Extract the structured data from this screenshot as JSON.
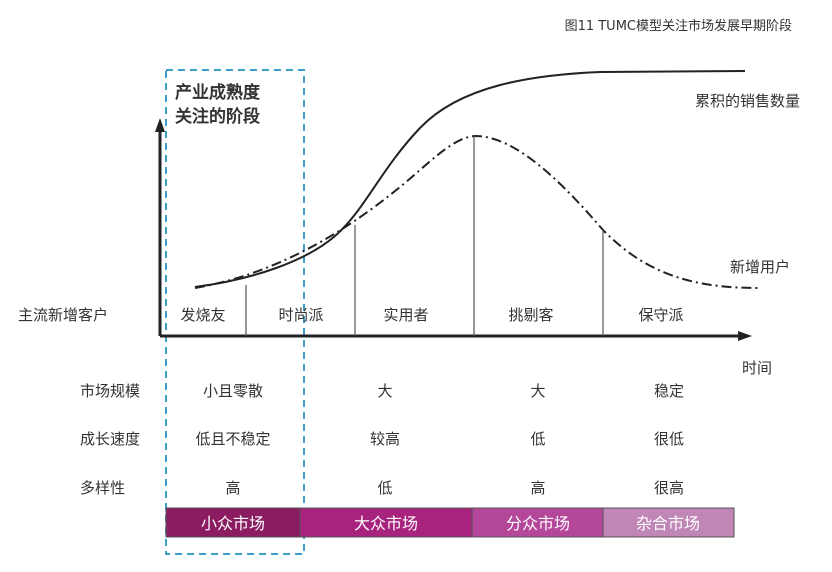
{
  "chart_data": {
    "type": "line",
    "title": "图11 TUMC模型关注市场发展早期阶段",
    "xlabel": "时间",
    "focus_label": [
      "产业成熟度",
      "关注的阶段"
    ],
    "series": [
      {
        "name": "累积的销售数量",
        "style": "solid"
      },
      {
        "name": "新增用户",
        "style": "dash-dot"
      }
    ],
    "row_header": "主流新增客户",
    "segments": [
      "发烧友",
      "时尚派",
      "实用者",
      "挑剔客",
      "保守派"
    ],
    "table": {
      "row_labels": [
        "市场规模",
        "成长速度",
        "多样性"
      ],
      "rows": [
        [
          "小且零散",
          "大",
          "大",
          "稳定"
        ],
        [
          "低且不稳定",
          "较高",
          "低",
          "很低"
        ],
        [
          "高",
          "低",
          "高",
          "很高"
        ]
      ]
    },
    "markets": [
      {
        "label": "小众市场",
        "color": "#8b1c62"
      },
      {
        "label": "大众市场",
        "color": "#a8237e"
      },
      {
        "label": "分众市场",
        "color": "#b5479b"
      },
      {
        "label": "杂合市场",
        "color": "#c086b6"
      }
    ],
    "colors": {
      "focus_box": "#3aa0c8",
      "curve": "#222222",
      "axis": "#222222"
    }
  }
}
